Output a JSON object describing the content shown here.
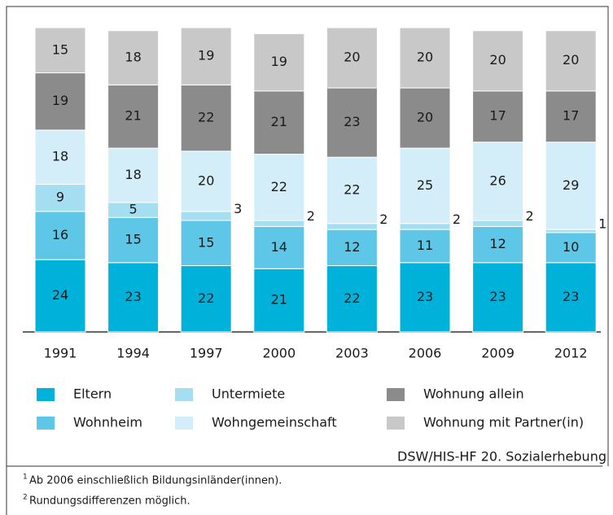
{
  "chart_data": {
    "type": "stacked_bar",
    "categories": [
      "1991",
      "1994",
      "1997",
      "2000",
      "2003",
      "2006",
      "2009",
      "2012"
    ],
    "series": [
      {
        "name": "Eltern",
        "color": "#00b2d9",
        "values": [
          24,
          23,
          22,
          21,
          22,
          23,
          23,
          23
        ]
      },
      {
        "name": "Wohnheim",
        "color": "#5ec6e6",
        "values": [
          16,
          15,
          15,
          14,
          12,
          11,
          12,
          10
        ]
      },
      {
        "name": "Untermiete",
        "color": "#a6def1",
        "values": [
          9,
          5,
          3,
          2,
          2,
          2,
          2,
          1
        ]
      },
      {
        "name": "Wohngemeinschaft",
        "color": "#d3eef8",
        "values": [
          18,
          18,
          20,
          22,
          22,
          25,
          26,
          29
        ]
      },
      {
        "name": "Wohnung allein",
        "color": "#8b8b8b",
        "values": [
          19,
          21,
          22,
          21,
          23,
          20,
          17,
          17
        ]
      },
      {
        "name": "Wohnung mit Partner(in)",
        "color": "#c8c8c8",
        "values": [
          15,
          18,
          19,
          19,
          20,
          20,
          20,
          20
        ]
      }
    ],
    "source": "DSW/HIS-HF 20. Sozialerhebung",
    "footnotes": [
      {
        "mark": "1",
        "text": "Ab 2006 einschließlich Bildungsinländer(innen)."
      },
      {
        "mark": "2",
        "text": "Rundungsdifferenzen möglich."
      }
    ]
  }
}
